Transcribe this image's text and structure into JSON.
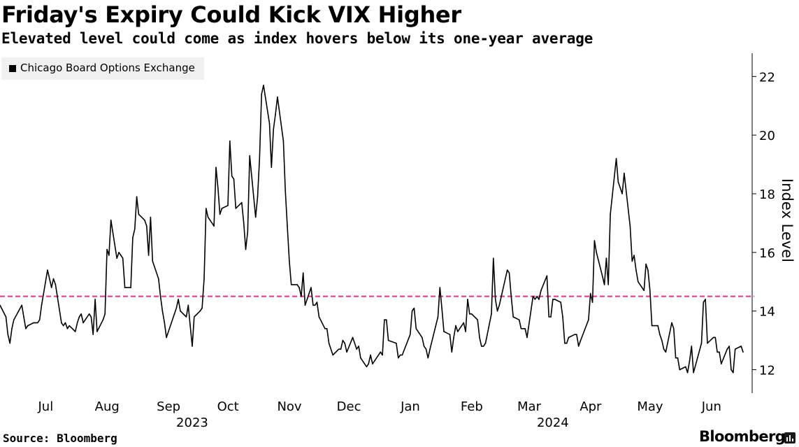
{
  "header": {
    "title": "Friday's Expiry Could Kick VIX Higher",
    "subtitle": "Elevated level could come as index hovers below its one-year average"
  },
  "legend": {
    "label": "Chicago Board Options Exchange"
  },
  "footer": {
    "source": "Source: Bloomberg",
    "brand": "Bloomberg",
    "brand_icon": "bloomberg-terminal-icon"
  },
  "chart_data": {
    "type": "line",
    "title": "Friday's Expiry Could Kick VIX Higher",
    "subtitle": "Elevated level could come as index hovers below its one-year average",
    "ylabel": "Index Level",
    "ylim": [
      11.2,
      22.7
    ],
    "yticks": [
      12,
      14,
      16,
      18,
      20,
      22
    ],
    "xlim": [
      "2023-06-09",
      "2024-06-18"
    ],
    "month_ticks": [
      {
        "date": "2023-07-01",
        "label": "Jul"
      },
      {
        "date": "2023-08-01",
        "label": "Aug"
      },
      {
        "date": "2023-09-01",
        "label": "Sep"
      },
      {
        "date": "2023-10-01",
        "label": "Oct"
      },
      {
        "date": "2023-11-01",
        "label": "Nov"
      },
      {
        "date": "2023-12-01",
        "label": "Dec"
      },
      {
        "date": "2024-01-01",
        "label": "Jan"
      },
      {
        "date": "2024-02-01",
        "label": "Feb"
      },
      {
        "date": "2024-03-01",
        "label": "Mar"
      },
      {
        "date": "2024-04-01",
        "label": "Apr"
      },
      {
        "date": "2024-05-01",
        "label": "May"
      },
      {
        "date": "2024-06-01",
        "label": "Jun"
      }
    ],
    "year_labels": [
      {
        "date": "2023-09-14",
        "label": "2023"
      },
      {
        "date": "2024-03-14",
        "label": "2024"
      }
    ],
    "reference_line": {
      "value": 14.5,
      "color": "#e8318a",
      "style": "dashed"
    },
    "grid": false,
    "legend_position": "top-left",
    "series": [
      {
        "name": "Chicago Board Options Exchange",
        "color": "#000000",
        "points": [
          [
            "2023-06-09",
            14.2
          ],
          [
            "2023-06-12",
            13.8
          ],
          [
            "2023-06-13",
            13.2
          ],
          [
            "2023-06-14",
            12.9
          ],
          [
            "2023-06-15",
            13.4
          ],
          [
            "2023-06-16",
            13.7
          ],
          [
            "2023-06-20",
            14.2
          ],
          [
            "2023-06-21",
            13.8
          ],
          [
            "2023-06-22",
            13.4
          ],
          [
            "2023-06-23",
            13.5
          ],
          [
            "2023-06-26",
            13.6
          ],
          [
            "2023-06-27",
            13.6
          ],
          [
            "2023-06-28",
            13.6
          ],
          [
            "2023-06-29",
            13.7
          ],
          [
            "2023-06-30",
            14.2
          ],
          [
            "2023-07-03",
            15.4
          ],
          [
            "2023-07-05",
            14.8
          ],
          [
            "2023-07-06",
            15.1
          ],
          [
            "2023-07-07",
            14.9
          ],
          [
            "2023-07-10",
            13.6
          ],
          [
            "2023-07-11",
            13.5
          ],
          [
            "2023-07-12",
            13.6
          ],
          [
            "2023-07-13",
            13.4
          ],
          [
            "2023-07-14",
            13.5
          ],
          [
            "2023-07-17",
            13.3
          ],
          [
            "2023-07-18",
            13.6
          ],
          [
            "2023-07-19",
            13.8
          ],
          [
            "2023-07-20",
            13.9
          ],
          [
            "2023-07-21",
            13.6
          ],
          [
            "2023-07-24",
            13.9
          ],
          [
            "2023-07-25",
            13.8
          ],
          [
            "2023-07-26",
            13.2
          ],
          [
            "2023-07-27",
            14.4
          ],
          [
            "2023-07-28",
            13.3
          ],
          [
            "2023-07-31",
            13.7
          ],
          [
            "2023-08-01",
            13.9
          ],
          [
            "2023-08-02",
            16.1
          ],
          [
            "2023-08-03",
            15.9
          ],
          [
            "2023-08-04",
            17.1
          ],
          [
            "2023-08-07",
            15.8
          ],
          [
            "2023-08-08",
            16.0
          ],
          [
            "2023-08-09",
            15.9
          ],
          [
            "2023-08-10",
            15.8
          ],
          [
            "2023-08-11",
            14.8
          ],
          [
            "2023-08-14",
            14.8
          ],
          [
            "2023-08-15",
            16.5
          ],
          [
            "2023-08-16",
            16.8
          ],
          [
            "2023-08-17",
            17.9
          ],
          [
            "2023-08-18",
            17.3
          ],
          [
            "2023-08-21",
            17.1
          ],
          [
            "2023-08-22",
            16.9
          ],
          [
            "2023-08-23",
            15.9
          ],
          [
            "2023-08-24",
            17.2
          ],
          [
            "2023-08-25",
            15.7
          ],
          [
            "2023-08-28",
            15.1
          ],
          [
            "2023-08-29",
            14.5
          ],
          [
            "2023-08-30",
            14.0
          ],
          [
            "2023-08-31",
            13.6
          ],
          [
            "2023-09-01",
            13.1
          ],
          [
            "2023-09-05",
            13.9
          ],
          [
            "2023-09-06",
            14.1
          ],
          [
            "2023-09-07",
            14.4
          ],
          [
            "2023-09-08",
            14.0
          ],
          [
            "2023-09-11",
            13.8
          ],
          [
            "2023-09-12",
            14.2
          ],
          [
            "2023-09-13",
            13.5
          ],
          [
            "2023-09-14",
            12.8
          ],
          [
            "2023-09-15",
            13.8
          ],
          [
            "2023-09-18",
            14.0
          ],
          [
            "2023-09-19",
            14.1
          ],
          [
            "2023-09-20",
            15.1
          ],
          [
            "2023-09-21",
            17.5
          ],
          [
            "2023-09-22",
            17.2
          ],
          [
            "2023-09-25",
            16.9
          ],
          [
            "2023-09-26",
            18.9
          ],
          [
            "2023-09-27",
            18.2
          ],
          [
            "2023-09-28",
            17.3
          ],
          [
            "2023-09-29",
            17.5
          ],
          [
            "2023-10-02",
            17.6
          ],
          [
            "2023-10-03",
            19.8
          ],
          [
            "2023-10-04",
            18.6
          ],
          [
            "2023-10-05",
            18.5
          ],
          [
            "2023-10-06",
            17.5
          ],
          [
            "2023-10-09",
            17.7
          ],
          [
            "2023-10-10",
            17.0
          ],
          [
            "2023-10-11",
            16.1
          ],
          [
            "2023-10-12",
            16.7
          ],
          [
            "2023-10-13",
            19.3
          ],
          [
            "2023-10-16",
            17.2
          ],
          [
            "2023-10-17",
            17.9
          ],
          [
            "2023-10-18",
            19.2
          ],
          [
            "2023-10-19",
            21.4
          ],
          [
            "2023-10-20",
            21.7
          ],
          [
            "2023-10-23",
            20.4
          ],
          [
            "2023-10-24",
            18.9
          ],
          [
            "2023-10-25",
            20.2
          ],
          [
            "2023-10-26",
            20.7
          ],
          [
            "2023-10-27",
            21.3
          ],
          [
            "2023-10-30",
            19.8
          ],
          [
            "2023-10-31",
            18.1
          ],
          [
            "2023-11-01",
            16.9
          ],
          [
            "2023-11-02",
            15.7
          ],
          [
            "2023-11-03",
            14.9
          ],
          [
            "2023-11-06",
            14.9
          ],
          [
            "2023-11-07",
            14.8
          ],
          [
            "2023-11-08",
            14.5
          ],
          [
            "2023-11-09",
            15.3
          ],
          [
            "2023-11-10",
            14.2
          ],
          [
            "2023-11-13",
            14.8
          ],
          [
            "2023-11-14",
            14.2
          ],
          [
            "2023-11-15",
            14.2
          ],
          [
            "2023-11-16",
            14.3
          ],
          [
            "2023-11-17",
            13.8
          ],
          [
            "2023-11-20",
            13.4
          ],
          [
            "2023-11-21",
            13.4
          ],
          [
            "2023-11-22",
            12.9
          ],
          [
            "2023-11-24",
            12.5
          ],
          [
            "2023-11-27",
            12.7
          ],
          [
            "2023-11-28",
            12.7
          ],
          [
            "2023-11-29",
            13.0
          ],
          [
            "2023-11-30",
            12.9
          ],
          [
            "2023-12-01",
            12.6
          ],
          [
            "2023-12-04",
            13.1
          ],
          [
            "2023-12-05",
            12.9
          ],
          [
            "2023-12-06",
            12.7
          ],
          [
            "2023-12-07",
            12.8
          ],
          [
            "2023-12-08",
            12.4
          ],
          [
            "2023-12-11",
            12.1
          ],
          [
            "2023-12-12",
            12.2
          ],
          [
            "2023-12-13",
            12.5
          ],
          [
            "2023-12-14",
            12.2
          ],
          [
            "2023-12-15",
            12.3
          ],
          [
            "2023-12-18",
            12.6
          ],
          [
            "2023-12-19",
            12.5
          ],
          [
            "2023-12-20",
            13.7
          ],
          [
            "2023-12-21",
            13.7
          ],
          [
            "2023-12-22",
            13.0
          ],
          [
            "2023-12-26",
            12.9
          ],
          [
            "2023-12-27",
            12.4
          ],
          [
            "2023-12-28",
            12.5
          ],
          [
            "2023-12-29",
            12.5
          ],
          [
            "2024-01-02",
            13.2
          ],
          [
            "2024-01-03",
            14.0
          ],
          [
            "2024-01-04",
            14.1
          ],
          [
            "2024-01-05",
            13.4
          ],
          [
            "2024-01-08",
            13.1
          ],
          [
            "2024-01-09",
            12.8
          ],
          [
            "2024-01-10",
            12.7
          ],
          [
            "2024-01-11",
            12.4
          ],
          [
            "2024-01-12",
            12.7
          ],
          [
            "2024-01-16",
            13.8
          ],
          [
            "2024-01-17",
            14.8
          ],
          [
            "2024-01-18",
            14.1
          ],
          [
            "2024-01-19",
            13.3
          ],
          [
            "2024-01-22",
            13.2
          ],
          [
            "2024-01-23",
            12.6
          ],
          [
            "2024-01-24",
            13.1
          ],
          [
            "2024-01-25",
            13.5
          ],
          [
            "2024-01-26",
            13.3
          ],
          [
            "2024-01-29",
            13.6
          ],
          [
            "2024-01-30",
            13.3
          ],
          [
            "2024-01-31",
            14.4
          ],
          [
            "2024-02-01",
            13.9
          ],
          [
            "2024-02-02",
            13.9
          ],
          [
            "2024-02-05",
            13.7
          ],
          [
            "2024-02-06",
            13.1
          ],
          [
            "2024-02-07",
            12.8
          ],
          [
            "2024-02-08",
            12.8
          ],
          [
            "2024-02-09",
            12.9
          ],
          [
            "2024-02-12",
            13.9
          ],
          [
            "2024-02-13",
            15.8
          ],
          [
            "2024-02-14",
            14.4
          ],
          [
            "2024-02-15",
            14.0
          ],
          [
            "2024-02-16",
            14.2
          ],
          [
            "2024-02-20",
            15.4
          ],
          [
            "2024-02-21",
            15.3
          ],
          [
            "2024-02-22",
            14.5
          ],
          [
            "2024-02-23",
            13.8
          ],
          [
            "2024-02-26",
            13.7
          ],
          [
            "2024-02-27",
            13.4
          ],
          [
            "2024-02-28",
            13.4
          ],
          [
            "2024-02-29",
            13.4
          ],
          [
            "2024-03-01",
            13.1
          ],
          [
            "2024-03-04",
            14.5
          ],
          [
            "2024-03-05",
            14.4
          ],
          [
            "2024-03-06",
            14.5
          ],
          [
            "2024-03-07",
            14.4
          ],
          [
            "2024-03-08",
            14.7
          ],
          [
            "2024-03-11",
            15.2
          ],
          [
            "2024-03-12",
            13.8
          ],
          [
            "2024-03-13",
            13.8
          ],
          [
            "2024-03-14",
            14.4
          ],
          [
            "2024-03-15",
            14.4
          ],
          [
            "2024-03-18",
            14.3
          ],
          [
            "2024-03-19",
            13.8
          ],
          [
            "2024-03-20",
            12.9
          ],
          [
            "2024-03-21",
            12.9
          ],
          [
            "2024-03-22",
            13.1
          ],
          [
            "2024-03-25",
            13.2
          ],
          [
            "2024-03-26",
            13.2
          ],
          [
            "2024-03-27",
            12.8
          ],
          [
            "2024-03-28",
            13.0
          ],
          [
            "2024-04-01",
            13.7
          ],
          [
            "2024-04-02",
            14.6
          ],
          [
            "2024-04-03",
            14.3
          ],
          [
            "2024-04-04",
            16.4
          ],
          [
            "2024-04-05",
            16.0
          ],
          [
            "2024-04-08",
            15.2
          ],
          [
            "2024-04-09",
            14.9
          ],
          [
            "2024-04-10",
            15.8
          ],
          [
            "2024-04-11",
            14.9
          ],
          [
            "2024-04-12",
            17.3
          ],
          [
            "2024-04-15",
            19.2
          ],
          [
            "2024-04-16",
            18.4
          ],
          [
            "2024-04-17",
            18.2
          ],
          [
            "2024-04-18",
            18.0
          ],
          [
            "2024-04-19",
            18.7
          ],
          [
            "2024-04-22",
            16.9
          ],
          [
            "2024-04-23",
            15.7
          ],
          [
            "2024-04-24",
            15.9
          ],
          [
            "2024-04-25",
            15.4
          ],
          [
            "2024-04-26",
            15.0
          ],
          [
            "2024-04-29",
            14.7
          ],
          [
            "2024-04-30",
            15.6
          ],
          [
            "2024-05-01",
            15.4
          ],
          [
            "2024-05-02",
            14.7
          ],
          [
            "2024-05-03",
            13.5
          ],
          [
            "2024-05-06",
            13.5
          ],
          [
            "2024-05-07",
            13.2
          ],
          [
            "2024-05-08",
            13.0
          ],
          [
            "2024-05-09",
            12.7
          ],
          [
            "2024-05-10",
            12.6
          ],
          [
            "2024-05-13",
            13.6
          ],
          [
            "2024-05-14",
            13.4
          ],
          [
            "2024-05-15",
            12.4
          ],
          [
            "2024-05-16",
            12.4
          ],
          [
            "2024-05-17",
            12.0
          ],
          [
            "2024-05-20",
            12.1
          ],
          [
            "2024-05-21",
            11.9
          ],
          [
            "2024-05-22",
            12.3
          ],
          [
            "2024-05-23",
            12.8
          ],
          [
            "2024-05-24",
            11.9
          ],
          [
            "2024-05-28",
            12.9
          ],
          [
            "2024-05-29",
            14.3
          ],
          [
            "2024-05-30",
            14.4
          ],
          [
            "2024-05-31",
            12.9
          ],
          [
            "2024-06-03",
            13.1
          ],
          [
            "2024-06-04",
            13.1
          ],
          [
            "2024-06-05",
            12.6
          ],
          [
            "2024-06-06",
            12.6
          ],
          [
            "2024-06-07",
            12.2
          ],
          [
            "2024-06-10",
            12.7
          ],
          [
            "2024-06-11",
            12.8
          ],
          [
            "2024-06-12",
            12.0
          ],
          [
            "2024-06-13",
            11.9
          ],
          [
            "2024-06-14",
            12.7
          ],
          [
            "2024-06-17",
            12.8
          ],
          [
            "2024-06-18",
            12.6
          ]
        ]
      }
    ]
  }
}
